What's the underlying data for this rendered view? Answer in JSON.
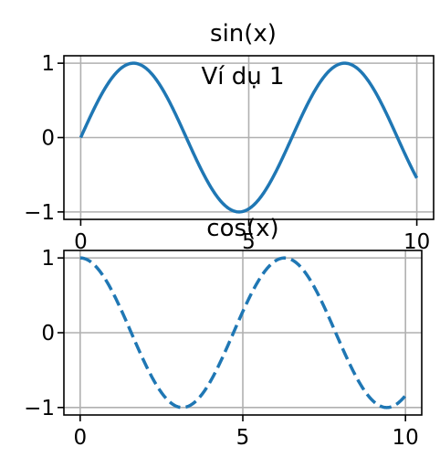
{
  "suptitle": "Ví dụ 1",
  "chart_data": [
    {
      "type": "line",
      "title": "sin(x)",
      "function": "sin",
      "x_range": [
        0,
        10
      ],
      "xlim": [
        -0.5,
        10.5
      ],
      "ylim": [
        -1.1,
        1.1
      ],
      "xticks": [
        "0",
        "5",
        "10"
      ],
      "yticks": [
        "1",
        "0",
        "−1"
      ],
      "grid": true,
      "line_style": "solid",
      "color": "#1f77b4"
    },
    {
      "type": "line",
      "title": "cos(x)",
      "function": "cos",
      "x_range": [
        0,
        10
      ],
      "xlim": [
        -0.5,
        10.5
      ],
      "ylim": [
        -1.1,
        1.1
      ],
      "xticks": [
        "0",
        "5",
        "10"
      ],
      "yticks": [
        "1",
        "0",
        "−1"
      ],
      "grid": true,
      "line_style": "dashed",
      "color": "#1f77b4"
    }
  ]
}
